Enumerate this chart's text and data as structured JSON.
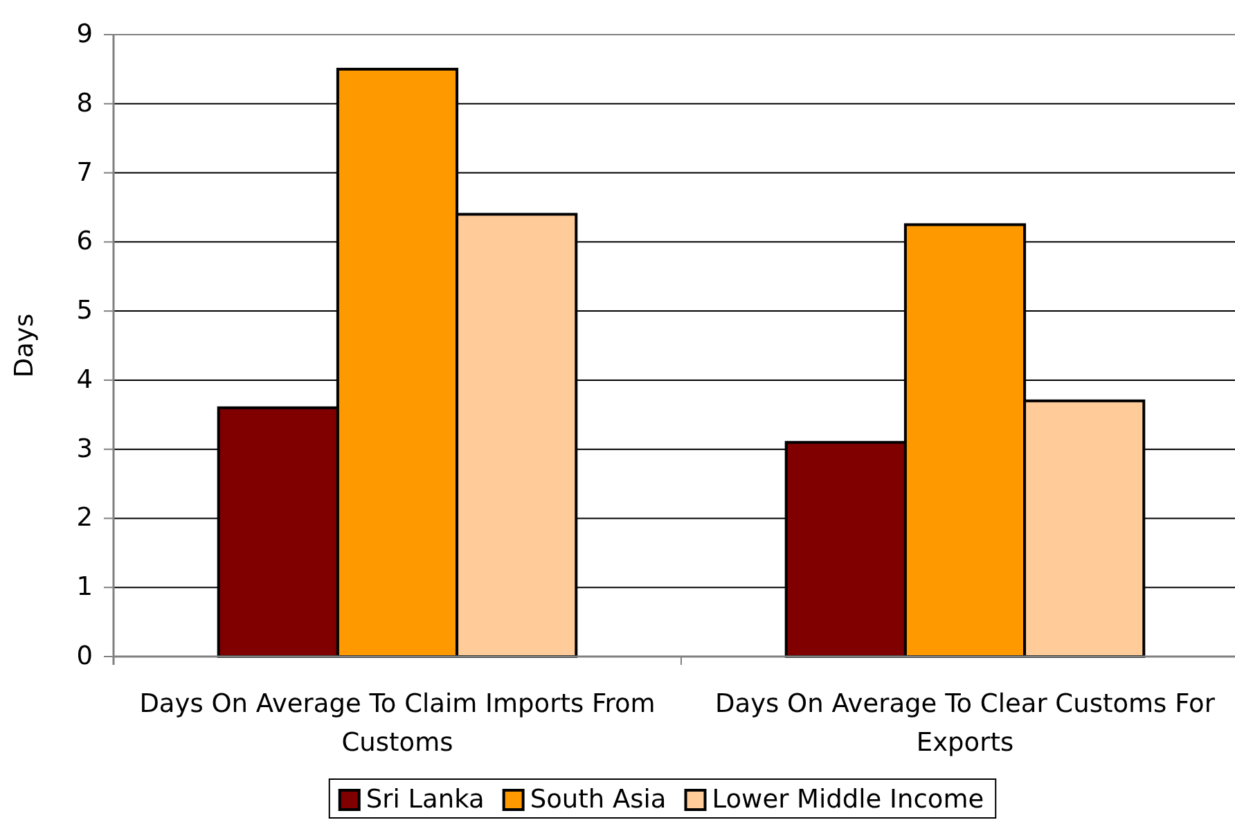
{
  "chart_data": {
    "type": "bar",
    "ylabel": "Days",
    "categories": [
      "Days On Average To Claim Imports From Customs",
      "Days On Average To Clear Customs For Exports"
    ],
    "series": [
      {
        "name": "Sri Lanka",
        "color": "#800000",
        "values": [
          3.6,
          3.1
        ]
      },
      {
        "name": "South Asia",
        "color": "#ff9900",
        "values": [
          8.5,
          6.25
        ]
      },
      {
        "name": "Lower Middle Income",
        "color": "#ffcc99",
        "values": [
          6.4,
          3.7
        ]
      }
    ],
    "ylim": [
      0,
      9
    ],
    "yticks": [
      0,
      1,
      2,
      3,
      4,
      5,
      6,
      7,
      8,
      9
    ],
    "grid": "y",
    "legend": "bottom"
  }
}
